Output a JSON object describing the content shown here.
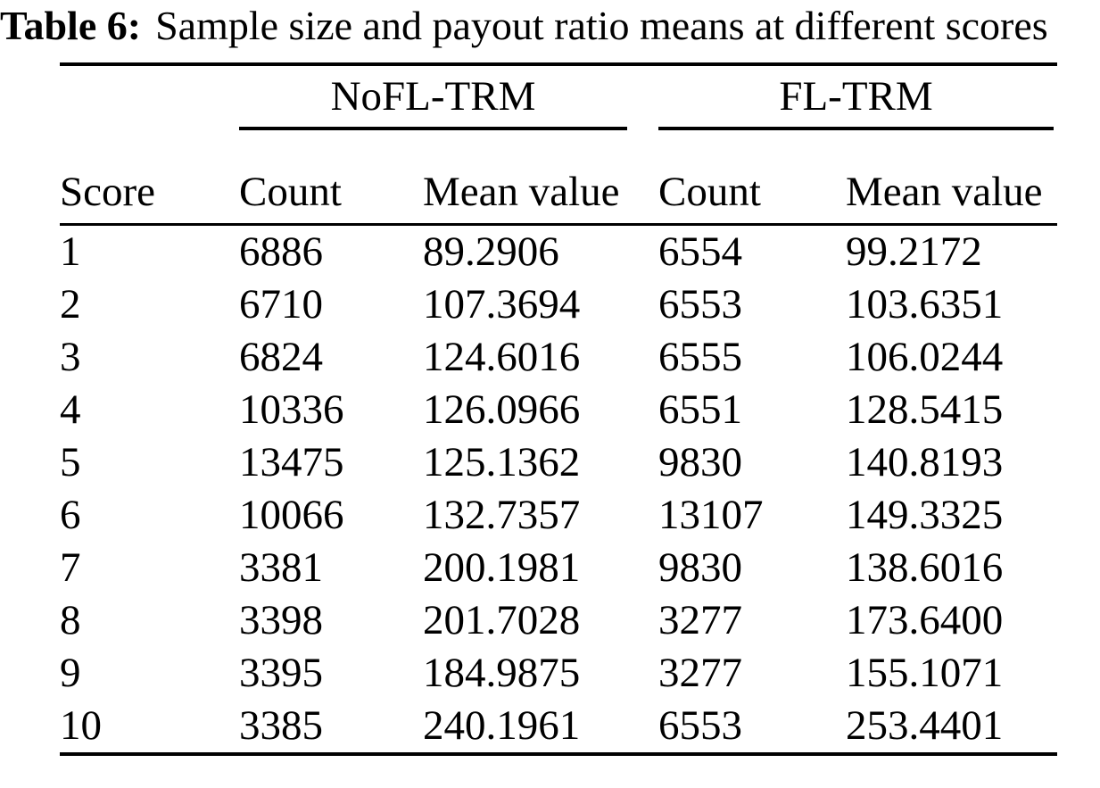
{
  "caption": {
    "label": "Table 6:",
    "text": "Sample size and payout ratio means at different scores"
  },
  "table": {
    "group_headers": {
      "nofl": "NoFL-TRM",
      "fl": "FL-TRM"
    },
    "columns": {
      "score": "Score",
      "count1": "Count",
      "mean1": "Mean value",
      "count2": "Count",
      "mean2": "Mean value"
    },
    "rows": [
      [
        "1",
        "6886",
        "89.2906",
        "6554",
        "99.2172"
      ],
      [
        "2",
        "6710",
        "107.3694",
        "6553",
        "103.6351"
      ],
      [
        "3",
        "6824",
        "124.6016",
        "6555",
        "106.0244"
      ],
      [
        "4",
        "10336",
        "126.0966",
        "6551",
        "128.5415"
      ],
      [
        "5",
        "13475",
        "125.1362",
        "9830",
        "140.8193"
      ],
      [
        "6",
        "10066",
        "132.7357",
        "13107",
        "149.3325"
      ],
      [
        "7",
        "3381",
        "200.1981",
        "9830",
        "138.6016"
      ],
      [
        "8",
        "3398",
        "201.7028",
        "3277",
        "173.6400"
      ],
      [
        "9",
        "3395",
        "184.9875",
        "3277",
        "155.1071"
      ],
      [
        "10",
        "3385",
        "240.1961",
        "6553",
        "253.4401"
      ]
    ]
  },
  "chart_data": {
    "type": "table",
    "title": "Table 6: Sample size and payout ratio means at different scores",
    "columns": [
      "Score",
      "NoFL-TRM Count",
      "NoFL-TRM Mean value",
      "FL-TRM Count",
      "FL-TRM Mean value"
    ],
    "rows": [
      [
        1,
        6886,
        89.2906,
        6554,
        99.2172
      ],
      [
        2,
        6710,
        107.3694,
        6553,
        103.6351
      ],
      [
        3,
        6824,
        124.6016,
        6555,
        106.0244
      ],
      [
        4,
        10336,
        126.0966,
        6551,
        128.5415
      ],
      [
        5,
        13475,
        125.1362,
        9830,
        140.8193
      ],
      [
        6,
        10066,
        132.7357,
        13107,
        149.3325
      ],
      [
        7,
        3381,
        200.1981,
        9830,
        138.6016
      ],
      [
        8,
        3398,
        201.7028,
        3277,
        173.64
      ],
      [
        9,
        3395,
        184.9875,
        3277,
        155.1071
      ],
      [
        10,
        3385,
        240.1961,
        6553,
        253.4401
      ]
    ]
  }
}
